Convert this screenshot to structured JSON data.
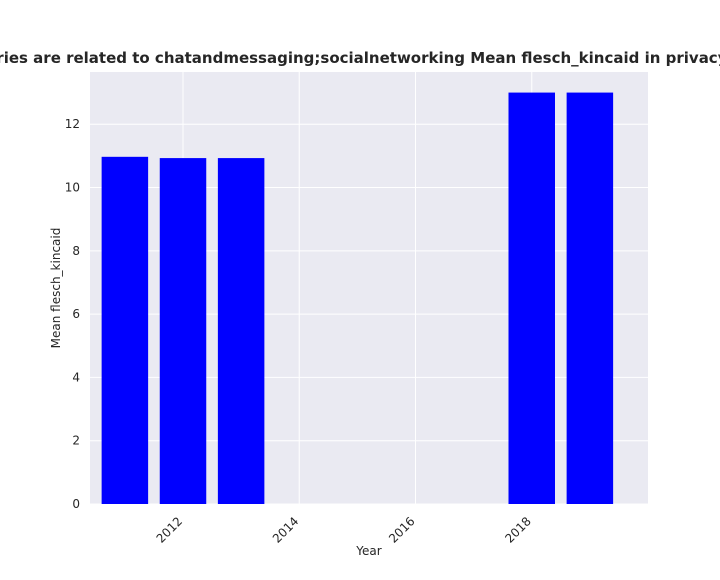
{
  "chart_data": {
    "type": "bar",
    "title": "egories are related to chatandmessaging;socialnetworking Mean flesch_kincaid in privacy polic",
    "xlabel": "Year",
    "ylabel": "Mean flesch_kincaid",
    "x": [
      2011,
      2012,
      2013,
      2018,
      2019
    ],
    "values": [
      10.97,
      10.93,
      10.93,
      13.0,
      13.0
    ],
    "xlim": [
      2010.4,
      2020.0
    ],
    "ylim": [
      0,
      13.65
    ],
    "xticks": [
      "2012",
      "2014",
      "2016",
      "2018"
    ],
    "yticks": [
      "0",
      "2",
      "4",
      "6",
      "8",
      "10",
      "12"
    ],
    "bar_color": "#0000ff",
    "plot_background": "#eaeaf2",
    "grid": true
  }
}
